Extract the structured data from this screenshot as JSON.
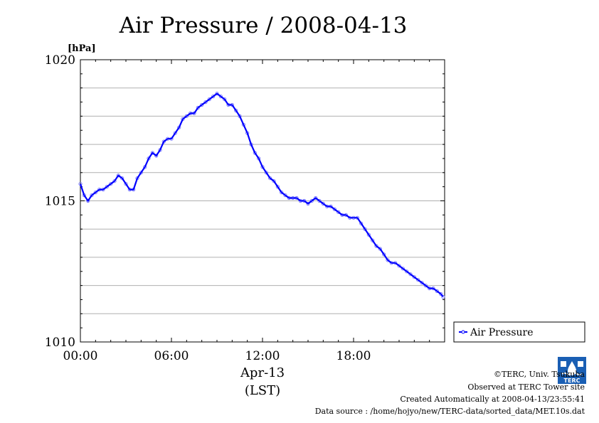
{
  "chart_data": {
    "type": "line",
    "title": "Air Pressure / 2008-04-13",
    "unit_label": "[hPa]",
    "xlabel_date": "Apr-13",
    "xlabel_tz": "(LST)",
    "ylim": [
      1010,
      1020
    ],
    "yticks": [
      1010,
      1015,
      1020
    ],
    "ytick_labels": [
      "1010",
      "1015",
      "1020"
    ],
    "xlim": [
      0,
      24
    ],
    "xticks": [
      0,
      6,
      12,
      18
    ],
    "xtick_labels": [
      "00:00",
      "06:00",
      "12:00",
      "18:00"
    ],
    "grid": true,
    "legend_position": "lower-right outside",
    "series": [
      {
        "name": "Air Pressure",
        "color": "#0000ff",
        "x": [
          0.0,
          0.25,
          0.5,
          0.75,
          1.0,
          1.25,
          1.5,
          1.75,
          2.0,
          2.25,
          2.5,
          2.75,
          3.0,
          3.25,
          3.5,
          3.75,
          4.0,
          4.25,
          4.5,
          4.75,
          5.0,
          5.25,
          5.5,
          5.75,
          6.0,
          6.25,
          6.5,
          6.75,
          7.0,
          7.25,
          7.5,
          7.75,
          8.0,
          8.25,
          8.5,
          8.75,
          9.0,
          9.25,
          9.5,
          9.75,
          10.0,
          10.25,
          10.5,
          10.75,
          11.0,
          11.25,
          11.5,
          11.75,
          12.0,
          12.25,
          12.5,
          12.75,
          13.0,
          13.25,
          13.5,
          13.75,
          14.0,
          14.25,
          14.5,
          14.75,
          15.0,
          15.25,
          15.5,
          15.75,
          16.0,
          16.25,
          16.5,
          16.75,
          17.0,
          17.25,
          17.5,
          17.75,
          18.0,
          18.25,
          18.5,
          18.75,
          19.0,
          19.25,
          19.5,
          19.75,
          20.0,
          20.25,
          20.5,
          20.75,
          21.0,
          21.25,
          21.5,
          21.75,
          22.0,
          22.25,
          22.5,
          22.75,
          23.0,
          23.25,
          23.5,
          23.75,
          23.9
        ],
        "values": [
          1015.6,
          1015.2,
          1015.0,
          1015.2,
          1015.3,
          1015.4,
          1015.4,
          1015.5,
          1015.6,
          1015.7,
          1015.9,
          1015.8,
          1015.6,
          1015.4,
          1015.4,
          1015.8,
          1016.0,
          1016.2,
          1016.5,
          1016.7,
          1016.6,
          1016.8,
          1017.1,
          1017.2,
          1017.2,
          1017.4,
          1017.6,
          1017.9,
          1018.0,
          1018.1,
          1018.1,
          1018.3,
          1018.4,
          1018.5,
          1018.6,
          1018.7,
          1018.8,
          1018.7,
          1018.6,
          1018.4,
          1018.4,
          1018.2,
          1018.0,
          1017.7,
          1017.4,
          1017.0,
          1016.7,
          1016.5,
          1016.2,
          1016.0,
          1015.8,
          1015.7,
          1015.5,
          1015.3,
          1015.2,
          1015.1,
          1015.1,
          1015.1,
          1015.0,
          1015.0,
          1014.9,
          1015.0,
          1015.1,
          1015.0,
          1014.9,
          1014.8,
          1014.8,
          1014.7,
          1014.6,
          1014.5,
          1014.5,
          1014.4,
          1014.4,
          1014.4,
          1014.2,
          1014.0,
          1013.8,
          1013.6,
          1013.4,
          1013.3,
          1013.1,
          1012.9,
          1012.8,
          1012.8,
          1012.7,
          1012.6,
          1012.5,
          1012.4,
          1012.3,
          1012.2,
          1012.1,
          1012.0,
          1011.9,
          1011.9,
          1011.8,
          1011.7,
          1011.6
        ]
      }
    ]
  },
  "credits": {
    "copyright": "©TERC, Univ. Tsukuba",
    "observed": "Observed at TERC Tower site",
    "created": "Created Automatically at 2008-04-13/23:55:41",
    "source": "Data source : /home/hojyo/new/TERC-data/sorted_data/MET.10s.dat"
  },
  "logo": {
    "text": "TERC",
    "color": "#1a5fb4"
  }
}
